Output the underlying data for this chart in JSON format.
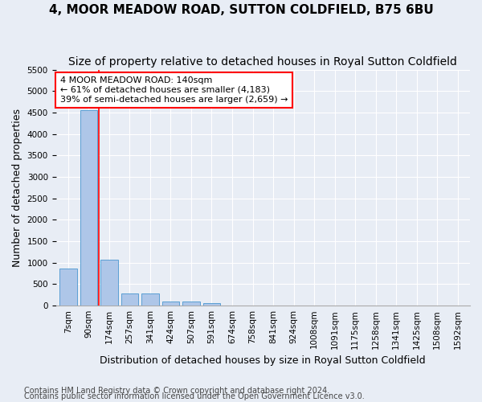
{
  "title": "4, MOOR MEADOW ROAD, SUTTON COLDFIELD, B75 6BU",
  "subtitle": "Size of property relative to detached houses in Royal Sutton Coldfield",
  "xlabel": "Distribution of detached houses by size in Royal Sutton Coldfield",
  "ylabel": "Number of detached properties",
  "footnote1": "Contains HM Land Registry data © Crown copyright and database right 2024.",
  "footnote2": "Contains public sector information licensed under the Open Government Licence v3.0.",
  "bins": [
    "7sqm",
    "90sqm",
    "174sqm",
    "257sqm",
    "341sqm",
    "424sqm",
    "507sqm",
    "591sqm",
    "674sqm",
    "758sqm",
    "841sqm",
    "924sqm",
    "1008sqm",
    "1091sqm",
    "1175sqm",
    "1258sqm",
    "1341sqm",
    "1425sqm",
    "1508sqm",
    "1592sqm"
  ],
  "bar_values": [
    870,
    4560,
    1060,
    290,
    290,
    95,
    95,
    55,
    0,
    0,
    0,
    0,
    0,
    0,
    0,
    0,
    0,
    0,
    0,
    0
  ],
  "bar_color": "#aec6e8",
  "bar_edge_color": "#5a9fd4",
  "annotation_box_text": "4 MOOR MEADOW ROAD: 140sqm\n← 61% of detached houses are smaller (4,183)\n39% of semi-detached houses are larger (2,659) →",
  "annotation_box_color": "white",
  "annotation_box_edge_color": "red",
  "vline_color": "red",
  "vline_x": 1.5,
  "ylim": [
    0,
    5500
  ],
  "yticks": [
    0,
    500,
    1000,
    1500,
    2000,
    2500,
    3000,
    3500,
    4000,
    4500,
    5000,
    5500
  ],
  "background_color": "#e8edf5",
  "plot_background": "#e8edf5",
  "title_fontsize": 11,
  "subtitle_fontsize": 10,
  "axis_label_fontsize": 9,
  "tick_fontsize": 7.5,
  "footnote_fontsize": 7
}
